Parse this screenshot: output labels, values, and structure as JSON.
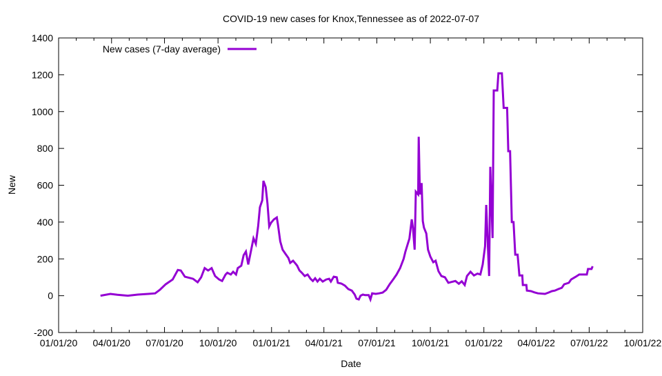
{
  "chart_data": {
    "type": "line",
    "title": "COVID-19 new cases for Knox,Tennessee as of 2022-07-07",
    "xlabel": "Date",
    "ylabel": "New",
    "x_unit": "days since 2020-01-01",
    "xlim": [
      0,
      1004
    ],
    "ylim": [
      -200,
      1400
    ],
    "yticks": [
      -200,
      0,
      200,
      400,
      600,
      800,
      1000,
      1200,
      1400
    ],
    "xticks": [
      {
        "day": 0,
        "label": "01/01/20"
      },
      {
        "day": 91,
        "label": "04/01/20"
      },
      {
        "day": 182,
        "label": "07/01/20"
      },
      {
        "day": 274,
        "label": "10/01/20"
      },
      {
        "day": 366,
        "label": "01/01/21"
      },
      {
        "day": 456,
        "label": "04/01/21"
      },
      {
        "day": 547,
        "label": "07/01/21"
      },
      {
        "day": 639,
        "label": "10/01/21"
      },
      {
        "day": 731,
        "label": "01/01/22"
      },
      {
        "day": 821,
        "label": "04/01/22"
      },
      {
        "day": 912,
        "label": "07/01/22"
      },
      {
        "day": 1004,
        "label": "10/01/22"
      }
    ],
    "grid": false,
    "legend_position": "top-left",
    "series": [
      {
        "name": "New cases (7-day average)",
        "color": "#9400d3",
        "points": [
          [
            72,
            0
          ],
          [
            89,
            10
          ],
          [
            101,
            5
          ],
          [
            119,
            0
          ],
          [
            136,
            6
          ],
          [
            154,
            10
          ],
          [
            166,
            13
          ],
          [
            174,
            32
          ],
          [
            184,
            62
          ],
          [
            196,
            88
          ],
          [
            205,
            140
          ],
          [
            210,
            137
          ],
          [
            217,
            103
          ],
          [
            231,
            92
          ],
          [
            239,
            73
          ],
          [
            245,
            100
          ],
          [
            251,
            150
          ],
          [
            257,
            137
          ],
          [
            263,
            150
          ],
          [
            269,
            107
          ],
          [
            276,
            88
          ],
          [
            281,
            80
          ],
          [
            287,
            115
          ],
          [
            290,
            125
          ],
          [
            296,
            115
          ],
          [
            300,
            130
          ],
          [
            305,
            115
          ],
          [
            308,
            150
          ],
          [
            314,
            163
          ],
          [
            318,
            220
          ],
          [
            322,
            240
          ],
          [
            326,
            170
          ],
          [
            331,
            248
          ],
          [
            335,
            312
          ],
          [
            339,
            282
          ],
          [
            343,
            380
          ],
          [
            346,
            480
          ],
          [
            350,
            518
          ],
          [
            352,
            624
          ],
          [
            356,
            590
          ],
          [
            359,
            500
          ],
          [
            362,
            376
          ],
          [
            365,
            395
          ],
          [
            370,
            414
          ],
          [
            375,
            425
          ],
          [
            377,
            388
          ],
          [
            381,
            295
          ],
          [
            385,
            250
          ],
          [
            390,
            227
          ],
          [
            395,
            205
          ],
          [
            398,
            178
          ],
          [
            403,
            190
          ],
          [
            407,
            175
          ],
          [
            410,
            163
          ],
          [
            414,
            137
          ],
          [
            418,
            125
          ],
          [
            423,
            107
          ],
          [
            428,
            115
          ],
          [
            433,
            92
          ],
          [
            437,
            80
          ],
          [
            441,
            95
          ],
          [
            445,
            77
          ],
          [
            449,
            92
          ],
          [
            454,
            77
          ],
          [
            460,
            88
          ],
          [
            465,
            92
          ],
          [
            468,
            77
          ],
          [
            473,
            103
          ],
          [
            478,
            100
          ],
          [
            480,
            70
          ],
          [
            486,
            66
          ],
          [
            492,
            55
          ],
          [
            498,
            36
          ],
          [
            504,
            28
          ],
          [
            509,
            6
          ],
          [
            512,
            -16
          ],
          [
            516,
            -20
          ],
          [
            519,
            0
          ],
          [
            523,
            6
          ],
          [
            527,
            3
          ],
          [
            533,
            3
          ],
          [
            536,
            -20
          ],
          [
            539,
            13
          ],
          [
            545,
            10
          ],
          [
            551,
            13
          ],
          [
            557,
            17
          ],
          [
            563,
            32
          ],
          [
            569,
            62
          ],
          [
            575,
            88
          ],
          [
            581,
            115
          ],
          [
            587,
            150
          ],
          [
            593,
            200
          ],
          [
            596,
            238
          ],
          [
            600,
            280
          ],
          [
            603,
            310
          ],
          [
            607,
            415
          ],
          [
            609,
            370
          ],
          [
            612,
            250
          ],
          [
            614,
            565
          ],
          [
            618,
            550
          ],
          [
            619,
            863
          ],
          [
            621,
            550
          ],
          [
            624,
            612
          ],
          [
            626,
            406
          ],
          [
            628,
            370
          ],
          [
            632,
            338
          ],
          [
            635,
            250
          ],
          [
            639,
            212
          ],
          [
            644,
            182
          ],
          [
            648,
            190
          ],
          [
            653,
            133
          ],
          [
            658,
            107
          ],
          [
            664,
            100
          ],
          [
            670,
            70
          ],
          [
            676,
            75
          ],
          [
            682,
            80
          ],
          [
            688,
            65
          ],
          [
            693,
            78
          ],
          [
            698,
            58
          ],
          [
            702,
            107
          ],
          [
            708,
            130
          ],
          [
            714,
            110
          ],
          [
            720,
            120
          ],
          [
            725,
            115
          ],
          [
            729,
            170
          ],
          [
            733,
            268
          ],
          [
            735,
            493
          ],
          [
            737,
            332
          ],
          [
            740,
            107
          ],
          [
            742,
            700
          ],
          [
            746,
            313
          ],
          [
            748,
            1115
          ],
          [
            754,
            1115
          ],
          [
            756,
            1208
          ],
          [
            762,
            1208
          ],
          [
            765,
            1020
          ],
          [
            771,
            1020
          ],
          [
            773,
            785
          ],
          [
            776,
            785
          ],
          [
            779,
            400
          ],
          [
            782,
            400
          ],
          [
            785,
            223
          ],
          [
            789,
            223
          ],
          [
            792,
            110
          ],
          [
            797,
            110
          ],
          [
            798,
            58
          ],
          [
            804,
            58
          ],
          [
            805,
            28
          ],
          [
            812,
            25
          ],
          [
            818,
            18
          ],
          [
            824,
            13
          ],
          [
            836,
            10
          ],
          [
            842,
            17
          ],
          [
            848,
            25
          ],
          [
            853,
            28
          ],
          [
            859,
            36
          ],
          [
            865,
            43
          ],
          [
            869,
            62
          ],
          [
            877,
            70
          ],
          [
            881,
            88
          ],
          [
            889,
            103
          ],
          [
            895,
            115
          ],
          [
            908,
            115
          ],
          [
            910,
            145
          ],
          [
            916,
            145
          ],
          [
            918,
            160
          ]
        ]
      }
    ]
  }
}
